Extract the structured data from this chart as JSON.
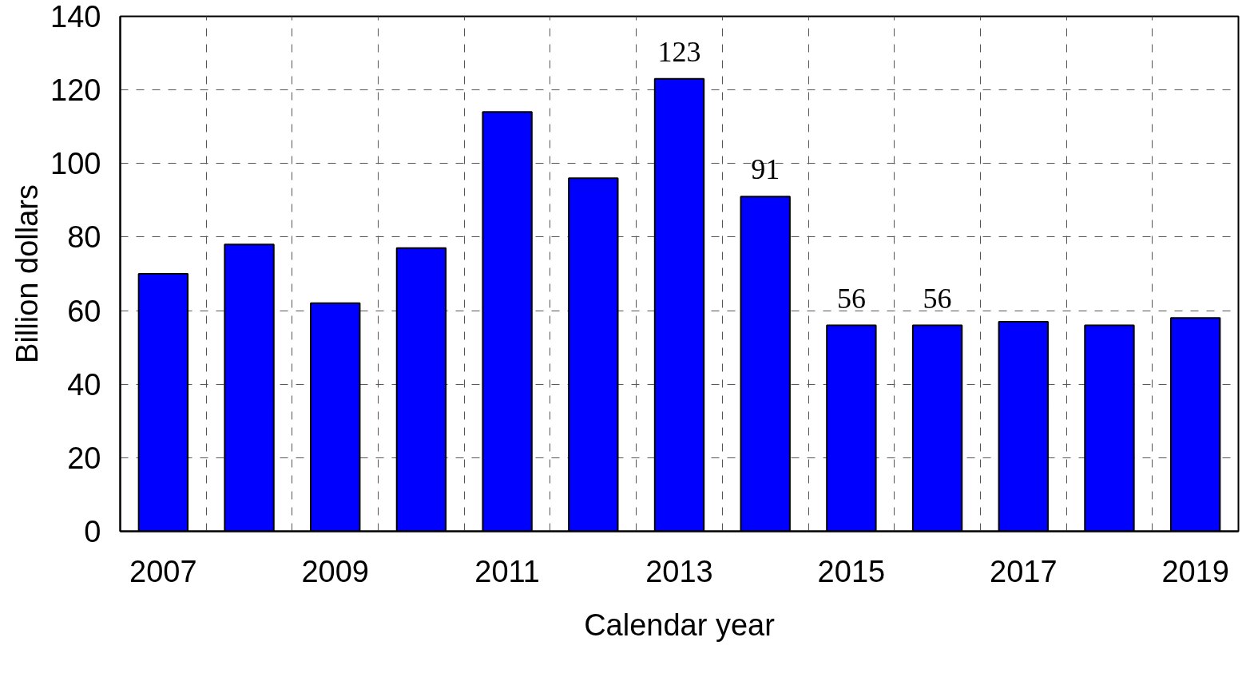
{
  "chart_data": {
    "type": "bar",
    "xlabel": "Calendar year",
    "ylabel": "Billion dollars",
    "categories": [
      "2007",
      null,
      "2009",
      null,
      "2011",
      null,
      "2013",
      null,
      "2015",
      null,
      "2017",
      null,
      "2019"
    ],
    "values": [
      70,
      78,
      62,
      77,
      114,
      96,
      123,
      91,
      56,
      56,
      57,
      56,
      58
    ],
    "value_labels": [
      null,
      null,
      null,
      null,
      null,
      null,
      "123",
      "91",
      "56",
      "56",
      null,
      null,
      null
    ],
    "color": "#0000ff",
    "ylim": [
      0,
      140
    ],
    "yticks": [
      0,
      20,
      40,
      60,
      80,
      100,
      120,
      140
    ],
    "grid": true
  }
}
